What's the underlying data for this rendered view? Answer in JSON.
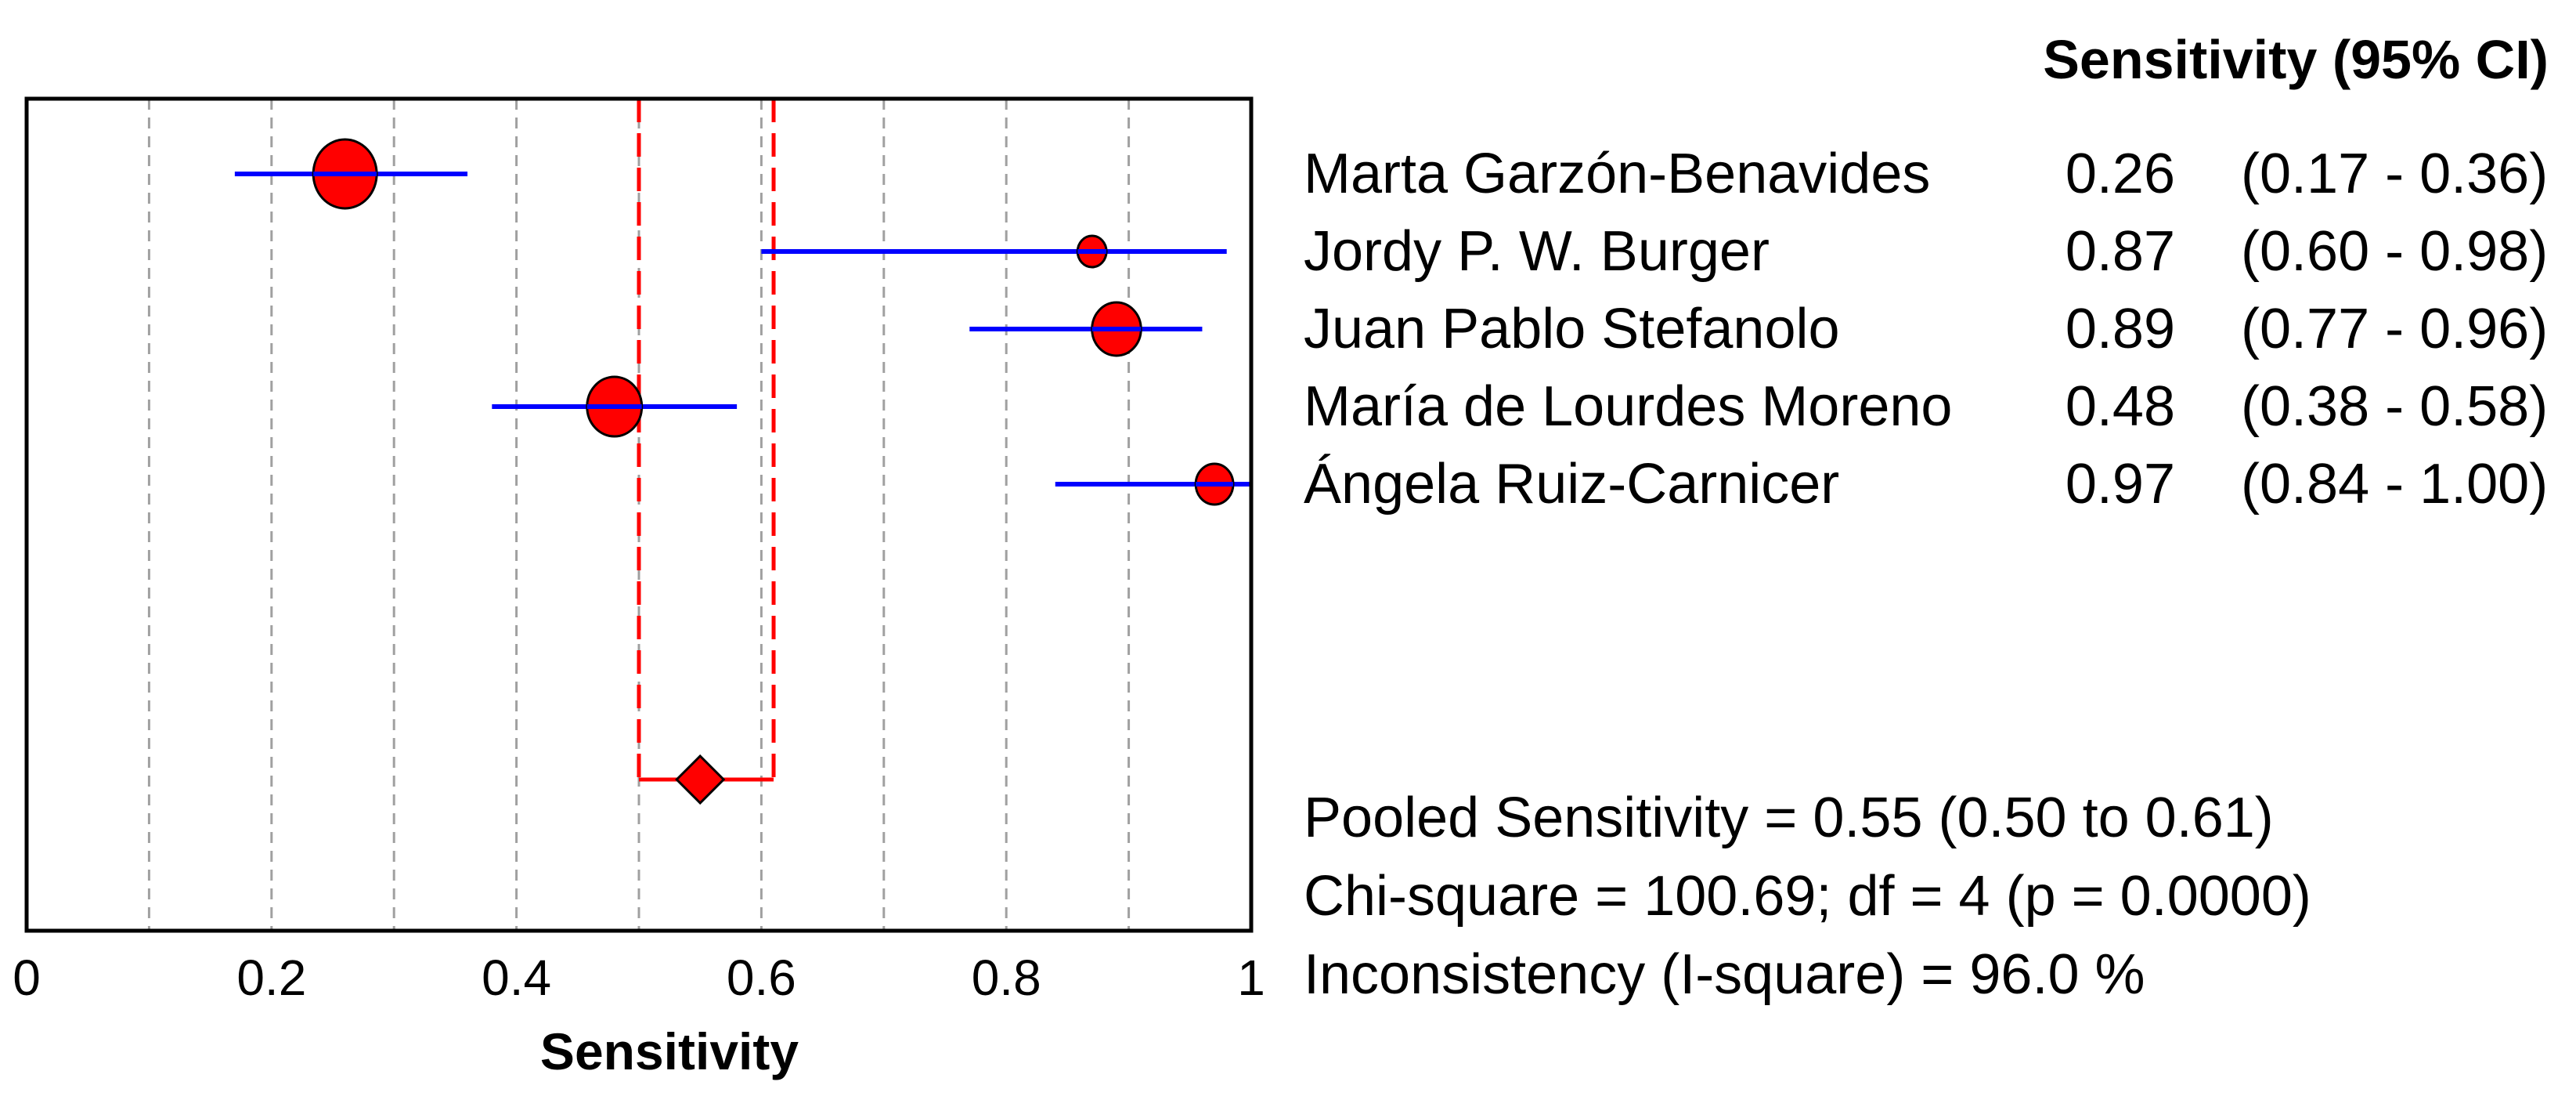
{
  "chart_data": {
    "type": "forest",
    "xlabel": "Sensitivity",
    "xlim": [
      0,
      1
    ],
    "x_ticks": [
      0,
      0.2,
      0.4,
      0.6,
      0.8,
      1
    ],
    "x_tick_labels": [
      "0",
      "0.2",
      "0.4",
      "0.6",
      "0.8",
      "1"
    ],
    "grid": "vertical dashed",
    "header": "Sensitivity (95% CI)",
    "studies": [
      {
        "name": "Marta Garzón-Benavides",
        "estimate": 0.26,
        "ci_low": 0.17,
        "ci_high": 0.36,
        "estimate_label": "0.26",
        "ci_label": "(0.17 - 0.36)"
      },
      {
        "name": "Jordy P. W. Burger",
        "estimate": 0.87,
        "ci_low": 0.6,
        "ci_high": 0.98,
        "estimate_label": "0.87",
        "ci_label": "(0.60 - 0.98)"
      },
      {
        "name": "Juan Pablo Stefanolo",
        "estimate": 0.89,
        "ci_low": 0.77,
        "ci_high": 0.96,
        "estimate_label": "0.89",
        "ci_label": "(0.77 - 0.96)"
      },
      {
        "name": "María de Lourdes Moreno",
        "estimate": 0.48,
        "ci_low": 0.38,
        "ci_high": 0.58,
        "estimate_label": "0.48",
        "ci_label": "(0.38 - 0.58)"
      },
      {
        "name": "Ángela Ruiz-Carnicer",
        "estimate": 0.97,
        "ci_low": 0.84,
        "ci_high": 1.0,
        "estimate_label": "0.97",
        "ci_label": "(0.84 - 1.00)"
      }
    ],
    "pooled": {
      "estimate": 0.55,
      "ci_low": 0.5,
      "ci_high": 0.61
    },
    "stats": [
      "Pooled Sensitivity = 0.55 (0.50 to 0.61)",
      "Chi-square = 100.69; df =  4 (p = 0.0000)",
      "Inconsistency (I-square) = 96.0 %"
    ]
  },
  "colors": {
    "marker": "#ff0000",
    "ci_line": "#0000ff",
    "pooled_line": "#ff0000",
    "grid": "#a0a0a0"
  }
}
